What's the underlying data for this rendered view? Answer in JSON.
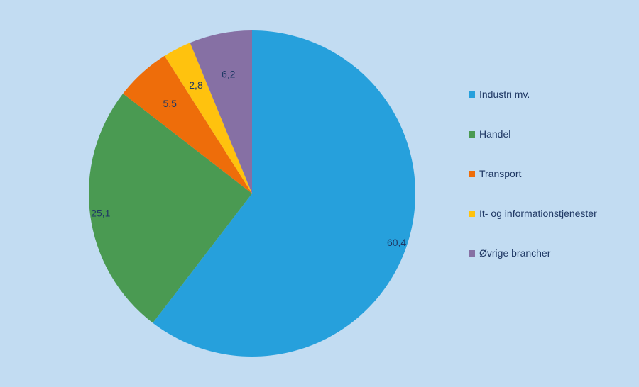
{
  "chart_data": {
    "type": "pie",
    "title": "",
    "legend_position": "right",
    "start_angle_deg": 0,
    "direction": "clockwise",
    "slices": [
      {
        "label": "Industri mv.",
        "value": 60.4,
        "value_label": "60,4",
        "color": "#26a0dc"
      },
      {
        "label": "Handel",
        "value": 25.1,
        "value_label": "25,1",
        "color": "#4a9a52"
      },
      {
        "label": "Transport",
        "value": 5.5,
        "value_label": "5,5",
        "color": "#ee6d0a"
      },
      {
        "label": "It- og informationstjenester",
        "value": 2.8,
        "value_label": "2,8",
        "color": "#ffc20e"
      },
      {
        "label": "Øvrige brancher",
        "value": 6.2,
        "value_label": "6,2",
        "color": "#8670a4"
      }
    ]
  },
  "legend": {
    "items": [
      {
        "label": "Industri mv."
      },
      {
        "label": "Handel"
      },
      {
        "label": "Transport"
      },
      {
        "label": "It- og informationstjenester"
      },
      {
        "label": "Øvrige brancher"
      }
    ]
  },
  "colors": {
    "background": "#c2dcf2",
    "text": "#1f3864"
  }
}
